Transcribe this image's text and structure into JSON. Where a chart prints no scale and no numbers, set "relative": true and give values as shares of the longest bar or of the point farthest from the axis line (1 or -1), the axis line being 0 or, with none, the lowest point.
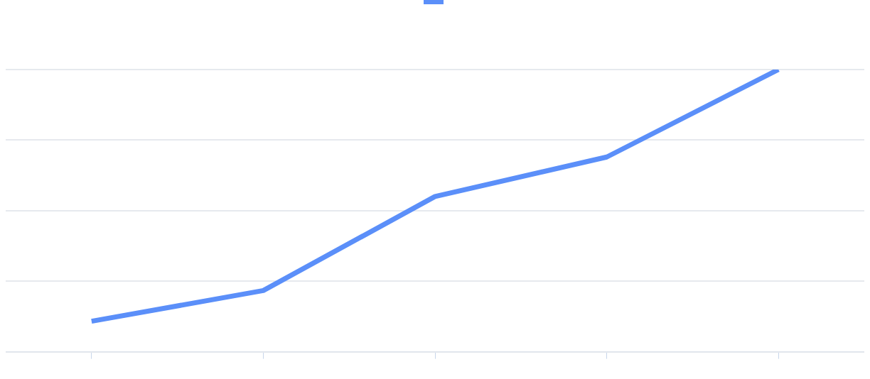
{
  "chart_data": {
    "type": "line",
    "relative": true,
    "categories": [
      null,
      null,
      null,
      null,
      null
    ],
    "series": [
      {
        "color": "#5b8ff9",
        "values": [
          0.108,
          0.217,
          0.55,
          0.69,
          1.0
        ]
      }
    ],
    "grid": "y",
    "marker": "none",
    "line_style": "solid"
  }
}
